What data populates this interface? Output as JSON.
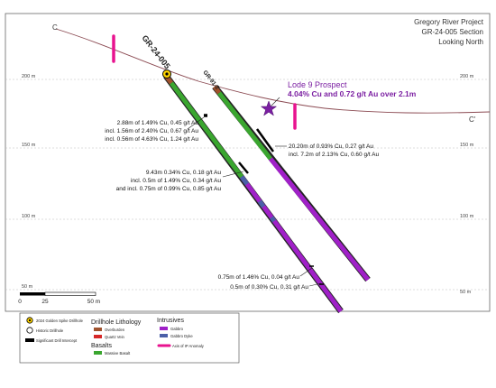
{
  "header": {
    "line1": "Gregory River Project",
    "line2": "GR-24-005 Section",
    "line3": "Looking North"
  },
  "section_ends": {
    "left": "C",
    "right": "C'"
  },
  "elevations": [
    {
      "label": "200 m",
      "value": 200
    },
    {
      "label": "150 m",
      "value": 150
    },
    {
      "label": "100 m",
      "value": 100
    },
    {
      "label": "50 m",
      "value": 50
    }
  ],
  "holes": [
    {
      "label": "GR-24-005",
      "type": "2024 Golden Spike Drillhole"
    },
    {
      "label": "GR-91-2",
      "type": "Historic Drillhole"
    }
  ],
  "prospect": {
    "title": "Lode 9 Prospect",
    "detail": "4.04% Cu and 0.72 g/t Au over 2.1m"
  },
  "intercepts": {
    "a": [
      "2.88m of 1.49% Cu, 0.45 g/t Au",
      "incl. 1.56m of 2.40% Cu, 0.67 g/t Au",
      "incl. 0.56m of 4.63% Cu, 1.24 g/t Au"
    ],
    "b": [
      "20.20m of 0.93% Cu, 0.27 g/t Au",
      "incl. 7.2m of 2.13% Cu, 0.60 g/t Au"
    ],
    "c": [
      "9.43m 0.34% Cu, 0.18 g/t Au",
      "incl. 0.5m of 1.49% Cu, 0.34 g/t Au",
      "and incl. 0.75m of  0.99% Cu, 0.85 g/t Au"
    ],
    "d": [
      "0.75m of 1.46% Cu, 0.04 g/t Au",
      "0.5m of 0.30% Cu, 0.31 g/t Au"
    ]
  },
  "scale": {
    "ticks": [
      "0",
      "25",
      "50 m"
    ]
  },
  "legend": {
    "symbols": [
      "2024 Golden Spike Drillhole",
      "Historic Drillhole",
      "Significant Drill Intercept"
    ],
    "drillhole_lithology": {
      "title": "Drillhole Lithology",
      "items": [
        {
          "label": "Overburden",
          "color": "#a0522d"
        },
        {
          "label": "Quartz Vein",
          "color": "#d62728"
        }
      ]
    },
    "basalts": {
      "title": "Basalts",
      "items": [
        {
          "label": "Massive Basalt",
          "color": "#3aa62f"
        }
      ]
    },
    "intrusives": {
      "title": "Intrusives",
      "items": [
        {
          "label": "Gabbro",
          "color": "#a020c8"
        },
        {
          "label": "Gabbro Dyke",
          "color": "#4b5fa8"
        }
      ]
    },
    "ip_anomaly": {
      "label": "Axis of IP Anomaly",
      "color": "#e8138f"
    }
  },
  "colors": {
    "basalt": "#3aa62f",
    "gabbro": "#a020c8",
    "gabbro_dyke": "#4b5fa8",
    "overburden": "#a0522d",
    "ip_anomaly": "#e8138f",
    "prospect": "#7b1fa2",
    "topography": "#8b4a52"
  }
}
